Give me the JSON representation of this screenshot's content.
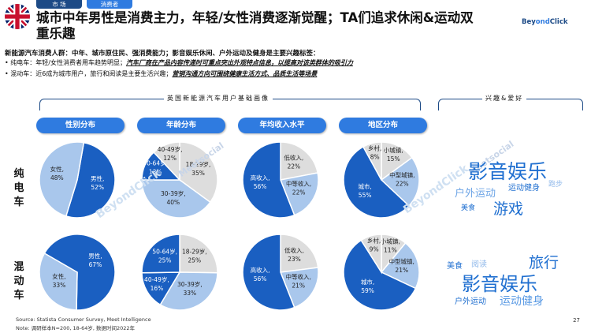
{
  "nav": {
    "market": "市 场",
    "consumer": "消费者"
  },
  "title": "城市中年男性是消费主力，年轻/女性消费逐渐觉醒；TA们追求休闲&运动双重乐趣",
  "brand": {
    "a": "Bey",
    "b": "ond",
    "c": "Click"
  },
  "watermark": {
    "a": "BeyondClick",
    "b": "Meetsocial"
  },
  "intro": "新能源汽车消费人群：中年、城市原住民、强消费能力；影音娱乐休闲、户外运动及健身是主要兴趣标签：",
  "bullets": [
    {
      "label": "纯电车：年轻/女性消费者用车趋势明显；",
      "em": "汽车厂商在产品内容传递时可重点突出外观特点信息，以提高对该类群体的吸引力"
    },
    {
      "label": "混动车：近6成为城市用户，旅行和阅读是主要生活兴趣；",
      "em": "营销沟通方向可围绕健康生活方式、品质生活等场景"
    }
  ],
  "sections": {
    "profile": "英国新能源汽车用户基础画像",
    "interest": "兴趣&爱好"
  },
  "columns": [
    "性别分布",
    "年龄分布",
    "年均收入水平",
    "地区分布"
  ],
  "rows": [
    "纯电车",
    "混动车"
  ],
  "colors": {
    "dark": "#1a5fc1",
    "mid": "#a9c7ec",
    "light": "#dddddd",
    "accent": "#2f7be0"
  },
  "pies": {
    "ev": [
      {
        "name": "gender",
        "slices": [
          {
            "label": "男性,",
            "pct": "52%",
            "v": 52,
            "c": "dark"
          },
          {
            "label": "女性,",
            "pct": "48%",
            "v": 48,
            "c": "mid"
          }
        ]
      },
      {
        "name": "age",
        "slices": [
          {
            "label": "18-29岁,",
            "pct": "35%",
            "v": 35,
            "c": "light"
          },
          {
            "label": "30-39岁,",
            "pct": "40%",
            "v": 40,
            "c": "mid"
          },
          {
            "label": "50-64岁,",
            "pct": "13%",
            "v": 13,
            "c": "dark"
          },
          {
            "label": "40-49岁,",
            "pct": "12%",
            "v": 12,
            "c": "light"
          }
        ]
      },
      {
        "name": "income",
        "slices": [
          {
            "label": "低收入,",
            "pct": "22%",
            "v": 22,
            "c": "light"
          },
          {
            "label": "中等收入,",
            "pct": "22%",
            "v": 22,
            "c": "mid"
          },
          {
            "label": "高收入,",
            "pct": "56%",
            "v": 56,
            "c": "dark"
          }
        ]
      },
      {
        "name": "region",
        "slices": [
          {
            "label": "小城镇,",
            "pct": "15%",
            "v": 15,
            "c": "light"
          },
          {
            "label": "中型城镇,",
            "pct": "22%",
            "v": 22,
            "c": "mid"
          },
          {
            "label": "城市,",
            "pct": "55%",
            "v": 55,
            "c": "dark"
          },
          {
            "label": "乡村,",
            "pct": "8%",
            "v": 8,
            "c": "light"
          }
        ]
      }
    ],
    "hybrid": [
      {
        "name": "gender",
        "slices": [
          {
            "label": "男性,",
            "pct": "67%",
            "v": 67,
            "c": "dark"
          },
          {
            "label": "女性,",
            "pct": "33%",
            "v": 33,
            "c": "mid"
          }
        ]
      },
      {
        "name": "age",
        "slices": [
          {
            "label": "18-29岁,",
            "pct": "25%",
            "v": 25,
            "c": "light"
          },
          {
            "label": "30-39岁,",
            "pct": "33%",
            "v": 33,
            "c": "mid"
          },
          {
            "label": "40-49岁,",
            "pct": "16%",
            "v": 16,
            "c": "dark"
          },
          {
            "label": "50-64岁,",
            "pct": "25%",
            "v": 25,
            "c": "dark"
          }
        ]
      },
      {
        "name": "income",
        "slices": [
          {
            "label": "低收入,",
            "pct": "23%",
            "v": 23,
            "c": "light"
          },
          {
            "label": "中等收入,",
            "pct": "21%",
            "v": 21,
            "c": "mid"
          },
          {
            "label": "高收入,",
            "pct": "56%",
            "v": 56,
            "c": "dark"
          }
        ]
      },
      {
        "name": "region",
        "slices": [
          {
            "label": "小城镇,",
            "pct": "11%",
            "v": 11,
            "c": "light"
          },
          {
            "label": "中型城镇,",
            "pct": "21%",
            "v": 21,
            "c": "mid"
          },
          {
            "label": "城市,",
            "pct": "59%",
            "v": 59,
            "c": "dark"
          },
          {
            "label": "乡村,",
            "pct": "9%",
            "v": 9,
            "c": "light"
          }
        ]
      }
    ]
  },
  "wordcloud": {
    "ev": [
      "影音娱乐",
      "户外运动",
      "运动健身",
      "跑步",
      "美食",
      "游戏"
    ],
    "hybrid": [
      "美食",
      "阅读",
      "旅行",
      "影音娱乐",
      "户外运动",
      "运动健身"
    ]
  },
  "footer": {
    "source": "Source: Statista Consumer Survey, Meet Intelligence",
    "note": "Note: 调研样本N=200, 18-64岁, 数据时间2022年"
  },
  "page": "27"
}
